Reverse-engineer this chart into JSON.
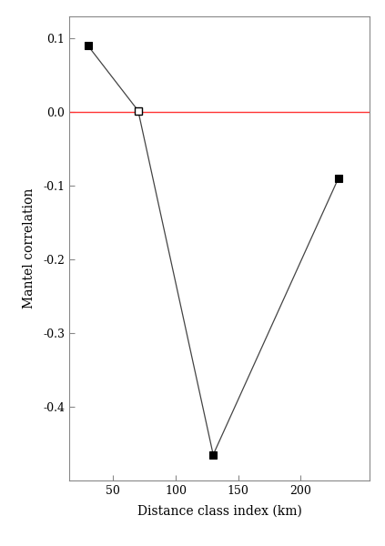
{
  "x": [
    30,
    70,
    130,
    230
  ],
  "y": [
    0.09,
    0.002,
    -0.465,
    -0.09
  ],
  "filled": [
    true,
    false,
    true,
    true
  ],
  "line_color": "#444444",
  "marker_color_filled": "#000000",
  "marker_color_open": "#ffffff",
  "marker_edge_color": "#000000",
  "marker_size": 6,
  "hline_y": 0.0,
  "hline_color": "#ff3333",
  "xlabel": "Distance class index (km)",
  "ylabel": "Mantel correlation",
  "xlim": [
    15,
    255
  ],
  "ylim": [
    -0.5,
    0.13
  ],
  "xticks": [
    50,
    100,
    150,
    200
  ],
  "yticks": [
    0.1,
    0.0,
    -0.1,
    -0.2,
    -0.3,
    -0.4
  ],
  "ytick_labels": [
    "0.1",
    "0.0",
    "-0.1",
    "-0.2",
    "-0.3",
    "-0.4"
  ],
  "bg_color": "#ffffff",
  "spine_color": "#888888",
  "tick_color": "#888888",
  "label_color": "#000000",
  "font_family": "DejaVu Serif",
  "font_size_label": 10,
  "font_size_tick": 9
}
